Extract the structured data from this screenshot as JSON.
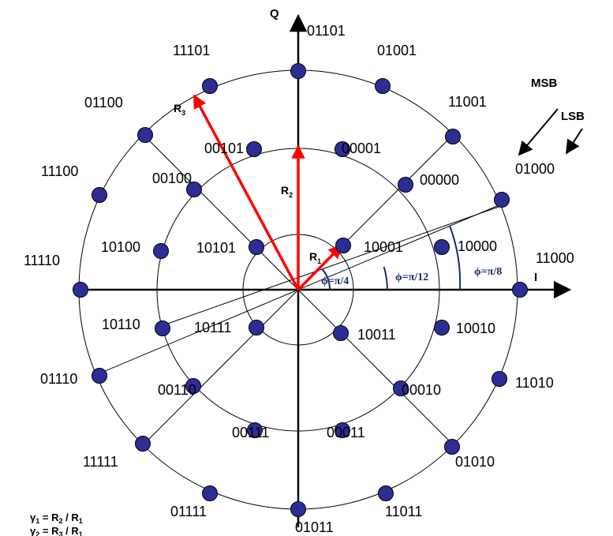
{
  "axes": {
    "i_label": "I",
    "q_label": "Q"
  },
  "colors": {
    "point": "#2d2d96",
    "vector": "#ff0000",
    "angle_arc": "#1a2a6e",
    "line": "#000000"
  },
  "legend": {
    "msb": "MSB",
    "lsb": "LSB",
    "example": "01000"
  },
  "radius_labels": {
    "r1": "R",
    "r1_sub": "1",
    "r2": "R",
    "r2_sub": "2",
    "r3": "R",
    "r3_sub": "3"
  },
  "angles": {
    "inner": "ϕ=π/4",
    "middle": "ϕ=π/12",
    "outer": "ϕ=π/8"
  },
  "formulas": {
    "g1": {
      "gamma": "γ",
      "gsub": "1",
      "eq": " = R",
      "a": "2",
      "mid": " / R",
      "b": "1"
    },
    "g2": {
      "gamma": "γ",
      "gsub": "2",
      "eq": " = R",
      "a": "3",
      "mid": " / R",
      "b": "1"
    }
  },
  "constellation": {
    "inner_ring": [
      "10001",
      "10101",
      "10111",
      "10011"
    ],
    "middle_ring": [
      "10000",
      "00000",
      "00001",
      "00101",
      "00100",
      "10100",
      "10110",
      "00110",
      "00111",
      "00011",
      "00010",
      "10010"
    ],
    "outer_ring": [
      "11000",
      "01000",
      "11001",
      "01001",
      "01101",
      "11101",
      "01100",
      "11100",
      "11110",
      "01110",
      "11111",
      "01111",
      "01011",
      "11011",
      "01010",
      "11010"
    ]
  }
}
